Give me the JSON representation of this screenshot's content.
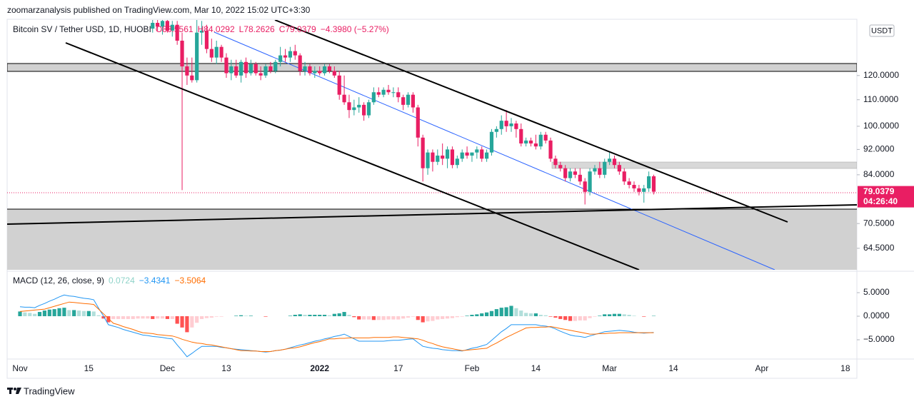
{
  "header": {
    "publisher": "zoomarzanalysis published on TradingView.com, Mar 10, 2022 15:02 UTC+3:30"
  },
  "chart_data": {
    "type": "candlestick",
    "title": "Bitcoin SV / Tether USD, 1D, HUOBI",
    "ohlc_labels": [
      "O83.5561",
      "H84.0292",
      "L78.2626",
      "C79.0379"
    ],
    "change_label": "−4.3980 (−5.27%)",
    "currency": "USDT",
    "categories": [
      "Nov",
      null,
      null,
      null,
      null,
      null,
      null,
      null,
      null,
      null,
      null,
      null,
      null,
      null,
      "15",
      null,
      null,
      null,
      null,
      null,
      null,
      null,
      null,
      null,
      null,
      null,
      null,
      null,
      null,
      null,
      "Dec",
      null,
      null,
      null,
      null,
      null,
      null,
      null,
      null,
      null,
      null,
      null,
      "13",
      null,
      null,
      null,
      null,
      null,
      null,
      null,
      null,
      null,
      null,
      null,
      null,
      null,
      null,
      null,
      null,
      null,
      null,
      "2022",
      null,
      null,
      null,
      null,
      null,
      null,
      null,
      null,
      null,
      null,
      null,
      null,
      null,
      null,
      null,
      "17",
      null,
      null,
      null,
      null,
      null,
      null,
      null,
      null,
      null,
      null,
      null,
      null,
      null,
      null,
      "Feb",
      null,
      null,
      null,
      null,
      null,
      null,
      null,
      null,
      null,
      null,
      null,
      null,
      "14",
      null,
      null,
      null,
      null,
      null,
      null,
      null,
      null,
      null,
      null,
      null,
      null,
      null,
      null,
      "Mar",
      null,
      null,
      null,
      null,
      null,
      null,
      null,
      null,
      null,
      null,
      null,
      null,
      "14",
      null,
      null,
      null,
      null,
      null,
      null,
      null,
      null,
      null,
      null,
      null,
      null,
      null,
      null,
      null,
      null,
      null,
      "Apr",
      null,
      null,
      null,
      null,
      null,
      null,
      null,
      null,
      null,
      null,
      null,
      null,
      null,
      null,
      null,
      null,
      "18"
    ],
    "ohlc": [
      null,
      null,
      null,
      null,
      null,
      null,
      null,
      null,
      null,
      null,
      null,
      null,
      null,
      null,
      null,
      null,
      null,
      null,
      null,
      null,
      null,
      null,
      null,
      null,
      null,
      null,
      null,
      [
        142,
        148,
        140,
        145
      ],
      [
        145,
        149,
        141,
        143
      ],
      [
        143,
        147,
        139,
        146
      ],
      [
        146,
        149,
        140,
        141
      ],
      [
        141,
        146,
        138,
        144
      ],
      [
        144,
        146,
        134,
        136
      ],
      [
        136,
        140,
        79.5,
        124
      ],
      [
        124,
        128,
        116,
        120
      ],
      [
        120,
        128,
        117,
        118
      ],
      [
        118,
        150,
        117,
        140
      ],
      [
        140,
        146,
        134,
        141
      ],
      [
        141,
        144,
        130,
        132
      ],
      [
        132,
        137,
        126,
        128
      ],
      [
        128,
        136,
        125,
        133
      ],
      [
        133,
        134,
        126,
        128
      ],
      [
        128,
        130,
        119,
        121
      ],
      [
        121,
        127,
        118,
        124
      ],
      [
        124,
        127,
        119,
        120
      ],
      [
        120,
        127,
        117,
        126
      ],
      [
        126,
        128,
        119,
        121
      ],
      [
        121,
        127,
        120,
        125
      ],
      [
        125,
        126,
        120,
        121
      ],
      [
        121,
        124,
        118,
        120
      ],
      [
        120,
        125,
        119,
        124
      ],
      [
        124,
        126,
        121,
        122
      ],
      [
        122,
        127,
        121,
        126
      ],
      [
        126,
        133,
        124,
        129
      ],
      [
        129,
        132,
        126,
        128
      ],
      [
        128,
        133,
        126,
        131
      ],
      [
        131,
        134,
        127,
        129
      ],
      [
        129,
        130,
        120,
        122
      ],
      [
        122,
        126,
        120,
        124
      ],
      [
        124,
        125,
        120,
        121
      ],
      [
        121,
        124,
        119,
        122
      ],
      [
        122,
        124,
        120,
        121
      ],
      [
        121,
        125,
        120,
        124
      ],
      [
        124,
        125,
        121,
        122
      ],
      [
        122,
        124,
        119,
        120
      ],
      [
        120,
        122,
        110,
        112
      ],
      [
        112,
        120,
        108,
        109
      ],
      [
        109,
        112,
        103,
        106
      ],
      [
        106,
        110,
        104,
        107
      ],
      [
        107,
        111,
        105,
        108
      ],
      [
        108,
        109,
        102,
        104
      ],
      [
        104,
        110,
        103,
        109
      ],
      [
        109,
        115,
        108,
        113
      ],
      [
        113,
        115,
        111,
        112
      ],
      [
        112,
        115,
        111,
        114
      ],
      [
        114,
        116,
        112,
        113
      ],
      [
        113,
        115,
        111,
        113
      ],
      [
        113,
        115,
        109,
        111
      ],
      [
        111,
        112,
        106,
        108
      ],
      [
        108,
        113,
        107,
        112
      ],
      [
        112,
        113,
        105,
        107
      ],
      [
        107,
        108,
        93,
        96
      ],
      [
        96,
        97,
        82,
        86
      ],
      [
        86,
        92,
        84,
        91
      ],
      [
        91,
        92,
        85,
        88
      ],
      [
        88,
        92,
        87,
        90
      ],
      [
        90,
        94,
        87,
        89
      ],
      [
        89,
        93,
        86,
        92
      ],
      [
        92,
        93,
        86,
        87
      ],
      [
        87,
        90,
        86,
        89
      ],
      [
        89,
        92,
        88,
        91
      ],
      [
        91,
        93,
        89,
        90
      ],
      [
        90,
        91,
        88,
        91
      ],
      [
        91,
        93,
        89,
        92
      ],
      [
        92,
        93,
        88,
        89
      ],
      [
        89,
        92,
        88,
        91
      ],
      [
        91,
        99,
        90,
        98
      ],
      [
        98,
        100,
        96,
        99
      ],
      [
        99,
        104,
        97,
        102
      ],
      [
        102,
        106,
        98,
        100
      ],
      [
        100,
        103,
        98,
        101
      ],
      [
        101,
        102,
        96,
        99
      ],
      [
        99,
        101,
        93,
        94
      ],
      [
        94,
        96,
        93,
        95
      ],
      [
        95,
        96,
        93,
        94
      ],
      [
        94,
        97,
        92,
        93
      ],
      [
        93,
        98,
        92,
        97
      ],
      [
        97,
        98,
        94,
        95
      ],
      [
        95,
        96,
        88,
        89
      ],
      [
        89,
        90,
        86,
        87
      ],
      [
        87,
        88,
        85,
        86
      ],
      [
        86,
        87,
        82,
        83
      ],
      [
        83,
        86,
        82,
        85
      ],
      [
        85,
        86,
        83,
        84
      ],
      [
        84,
        86,
        81,
        82
      ],
      [
        82,
        83,
        75.5,
        79
      ],
      [
        79,
        86,
        78,
        85
      ],
      [
        85,
        87,
        84,
        86
      ],
      [
        86,
        88,
        83,
        84
      ],
      [
        84,
        89,
        83,
        88
      ],
      [
        88,
        91,
        87,
        89
      ],
      [
        89,
        90,
        86,
        87
      ],
      [
        87,
        88,
        84,
        85
      ],
      [
        85,
        86,
        81,
        82
      ],
      [
        82,
        83,
        80,
        81
      ],
      [
        81,
        82,
        79,
        80
      ],
      [
        80,
        81,
        78,
        79
      ],
      [
        79,
        81,
        76,
        80
      ],
      [
        80,
        85,
        79,
        83.55
      ],
      [
        83.5561,
        84.0292,
        78.2626,
        79.0379
      ],
      null,
      null,
      null,
      null,
      null,
      null,
      null,
      null,
      null,
      null,
      null,
      null,
      null,
      null,
      null,
      null,
      null,
      null,
      null,
      null,
      null,
      null,
      null,
      null,
      null,
      null,
      null,
      null,
      null,
      null,
      null,
      null,
      null,
      null,
      null,
      null,
      null,
      null,
      null
    ],
    "up_color": "#26a69a",
    "down_color": "#e91e63",
    "log_scale": true,
    "ylim": [
      59.7,
      146.5
    ],
    "yticks": [
      {
        "value": 64.5,
        "label": "64.5000"
      },
      {
        "value": 70.5,
        "label": "70.5000"
      },
      {
        "value": 84,
        "label": "84.0000"
      },
      {
        "value": 92,
        "label": "92.0000"
      },
      {
        "value": 100,
        "label": "100.0000"
      },
      {
        "value": 110,
        "label": "110.0000"
      },
      {
        "value": 120,
        "label": "120.0000"
      }
    ],
    "last_price_label": "79.0379",
    "countdown": "04:26:40",
    "macd": {
      "title": "MACD (12, 26, close, 9)",
      "ylim": [
        -8.94,
        9.24
      ],
      "yticks": [
        {
          "value": 5,
          "label": "5.0000"
        },
        {
          "value": 0,
          "label": "0.0000"
        },
        {
          "value": -5,
          "label": "−5.0000"
        }
      ],
      "histogram": {
        "last_label": "0.0724",
        "legend_color": "#8fd3c9",
        "colors": [
          "#26a69a",
          "#b2dfdb",
          "#ffcdd2",
          "#ff5252"
        ],
        "values": [
          1.0,
          0.8,
          0.7,
          0.5,
          0.9,
          1.2,
          1.4,
          1.5,
          1.7,
          1.8,
          1.3,
          1.3,
          1.2,
          1.1,
          1.1,
          1.0,
          0.2,
          -0.5,
          -1.3,
          -0.6,
          -0.6,
          -0.6,
          -0.6,
          -0.6,
          -0.5,
          -0.5,
          -0.5,
          -0.6,
          -0.5,
          -0.5,
          -0.6,
          -0.6,
          -1.6,
          -2.4,
          -3.4,
          -2.4,
          -1.4,
          -0.6,
          -0.4,
          -0.3,
          -0.1,
          -0.1,
          0.0,
          0.0,
          0.1,
          0.2,
          0.1,
          0.1,
          0.0,
          0.0,
          -0.1,
          0.0,
          0.0,
          0.0,
          0.0,
          0.1,
          0.3,
          0.4,
          0.3,
          0.3,
          0.3,
          0.3,
          0.3,
          0.2,
          0.5,
          0.6,
          0.9,
          0.3,
          -0.2,
          -0.7,
          -0.7,
          -0.7,
          -0.8,
          -0.8,
          -0.8,
          -0.7,
          -0.7,
          -0.7,
          -0.5,
          -0.3,
          -0.1,
          -0.8,
          -1.3,
          -1.1,
          -1.0,
          -0.7,
          -0.6,
          -0.5,
          -0.4,
          -0.2,
          -0.1,
          0.1,
          0.3,
          0.4,
          0.6,
          0.8,
          1.1,
          1.5,
          1.8,
          1.9,
          2.2,
          1.7,
          1.2,
          0.7,
          0.6,
          0.6,
          0.3,
          0.2,
          -0.1,
          -0.3,
          -0.6,
          -0.8,
          -1.0,
          -1.0,
          -0.9,
          -0.9,
          -0.4,
          -0.1,
          0.1,
          0.4,
          0.4,
          0.5,
          0.5,
          0.4,
          0.3,
          0.1,
          0.0,
          -0.1,
          0.0,
          0.0724,
          null,
          null,
          null,
          null,
          null,
          null,
          null,
          null,
          null,
          null,
          null,
          null,
          null,
          null,
          null,
          null,
          null,
          null,
          null,
          null,
          null,
          null,
          null,
          null,
          null,
          null,
          null,
          null,
          null,
          null,
          null,
          null,
          null,
          null,
          null,
          null,
          null,
          null,
          null
        ]
      },
      "macd_line": {
        "color": "#2196f3",
        "last_label": "−3.4341",
        "values": [
          2.0,
          1.9,
          1.9,
          1.8,
          2.3,
          2.7,
          3.2,
          3.6,
          4.1,
          4.5,
          4.3,
          4.2,
          4.0,
          3.8,
          3.7,
          3.5,
          1.7,
          0.0,
          -1.8,
          -2.1,
          -2.4,
          -2.8,
          -3.1,
          -3.4,
          -3.7,
          -4.0,
          -4.1,
          -4.3,
          -4.4,
          -4.5,
          -4.7,
          -4.8,
          -6.1,
          -7.3,
          -8.6,
          -7.9,
          -7.1,
          -6.4,
          -6.4,
          -6.4,
          -6.4,
          -6.6,
          -6.7,
          -6.9,
          -7.0,
          -7.1,
          -7.2,
          -7.3,
          -7.4,
          -7.5,
          -7.6,
          -7.5,
          -7.3,
          -7.2,
          -7.0,
          -6.7,
          -6.4,
          -6.1,
          -5.9,
          -5.6,
          -5.3,
          -5.1,
          -4.8,
          -4.6,
          -4.3,
          -4.1,
          -3.8,
          -4.3,
          -4.8,
          -5.3,
          -5.3,
          -5.3,
          -5.3,
          -5.3,
          -5.3,
          -5.2,
          -5.1,
          -5.1,
          -5.0,
          -4.9,
          -4.8,
          -5.6,
          -6.4,
          -6.6,
          -6.8,
          -6.9,
          -7.1,
          -7.2,
          -7.3,
          -7.3,
          -7.4,
          -7.1,
          -6.8,
          -6.6,
          -6.3,
          -6.0,
          -5.1,
          -4.2,
          -3.3,
          -2.6,
          -1.8,
          -1.8,
          -1.8,
          -1.8,
          -1.8,
          -1.8,
          -2.0,
          -2.1,
          -2.3,
          -2.7,
          -3.2,
          -3.6,
          -4.0,
          -4.2,
          -4.3,
          -4.5,
          -4.2,
          -3.9,
          -3.6,
          -3.3,
          -3.2,
          -3.1,
          -3.0,
          -3.1,
          -3.2,
          -3.4,
          -3.5,
          -3.6,
          -3.5,
          -3.4341,
          null,
          null,
          null,
          null,
          null,
          null,
          null,
          null,
          null,
          null,
          null,
          null,
          null,
          null,
          null,
          null,
          null,
          null,
          null,
          null,
          null,
          null,
          null,
          null,
          null,
          null,
          null,
          null,
          null,
          null,
          null,
          null,
          null,
          null,
          null,
          null,
          null,
          null,
          null
        ]
      },
      "signal_line": {
        "color": "#ff6d00",
        "last_label": "−3.5064",
        "values": [
          1.0,
          1.1,
          1.2,
          1.3,
          1.4,
          1.5,
          1.8,
          2.1,
          2.4,
          2.7,
          3.0,
          2.9,
          2.8,
          2.7,
          2.6,
          2.5,
          1.5,
          0.5,
          -0.5,
          -1.5,
          -1.8,
          -2.2,
          -2.5,
          -2.8,
          -3.2,
          -3.5,
          -3.6,
          -3.7,
          -3.9,
          -4.0,
          -4.1,
          -4.2,
          -4.5,
          -4.9,
          -5.2,
          -5.5,
          -5.7,
          -5.8,
          -6.0,
          -6.1,
          -6.3,
          -6.5,
          -6.7,
          -6.9,
          -7.1,
          -7.3,
          -7.3,
          -7.4,
          -7.4,
          -7.5,
          -7.5,
          -7.5,
          -7.3,
          -7.2,
          -7.0,
          -6.8,
          -6.7,
          -6.5,
          -6.2,
          -5.9,
          -5.6,
          -5.4,
          -5.1,
          -4.8,
          -4.8,
          -4.7,
          -4.7,
          -4.6,
          -4.6,
          -4.6,
          -4.6,
          -4.6,
          -4.5,
          -4.5,
          -4.5,
          -4.5,
          -4.4,
          -4.4,
          -4.5,
          -4.6,
          -4.7,
          -4.8,
          -5.1,
          -5.5,
          -5.8,
          -6.2,
          -6.5,
          -6.7,
          -6.9,
          -7.1,
          -7.3,
          -7.2,
          -7.1,
          -7.0,
          -6.9,
          -6.8,
          -6.2,
          -5.7,
          -5.1,
          -4.5,
          -4.0,
          -3.5,
          -3.0,
          -2.5,
          -2.4,
          -2.4,
          -2.3,
          -2.3,
          -2.2,
          -2.4,
          -2.6,
          -2.8,
          -3.0,
          -3.2,
          -3.4,
          -3.6,
          -3.8,
          -3.8,
          -3.7,
          -3.7,
          -3.6,
          -3.6,
          -3.5,
          -3.5,
          -3.5,
          -3.5,
          -3.5,
          -3.5,
          -3.5,
          -3.5064,
          null,
          null,
          null,
          null,
          null,
          null,
          null,
          null,
          null,
          null,
          null,
          null,
          null,
          null,
          null,
          null,
          null,
          null,
          null,
          null,
          null,
          null,
          null,
          null,
          null,
          null,
          null,
          null,
          null,
          null,
          null,
          null,
          null,
          null,
          null,
          null,
          null,
          null,
          null
        ]
      }
    }
  },
  "footer": {
    "brand": "TradingView"
  }
}
